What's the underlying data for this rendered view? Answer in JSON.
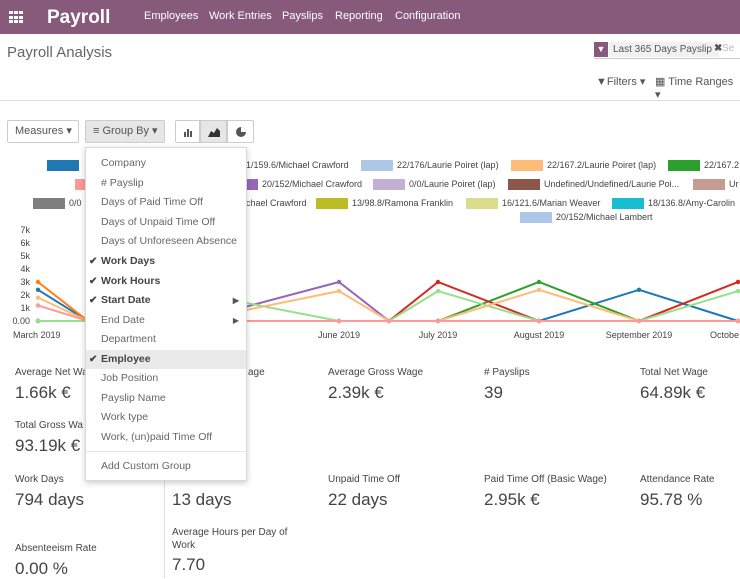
{
  "app": {
    "brand": "Payroll",
    "menu": [
      "Employees",
      "Work Entries",
      "Payslips",
      "Reporting",
      "Configuration"
    ]
  },
  "page": {
    "title": "Payroll Analysis"
  },
  "search": {
    "facet": "Last 365 Days Payslip",
    "placeholder": "Se",
    "filters_label": "Filters",
    "time_ranges_label": "Time Ranges"
  },
  "toolbar": {
    "measures": "Measures",
    "group_by": "Group By"
  },
  "legend": [
    {
      "label": "",
      "color": "#1f77b4"
    },
    {
      "label": "1/159.6/Michael Crawford",
      "color": "#aec7e8"
    },
    {
      "label": "22/176/Laurie Poiret (lap)",
      "color": "#aec7e8"
    },
    {
      "label": "22/167.2/Laurie Poiret (lap)",
      "color": "#ffbb78"
    },
    {
      "label": "22/167.2",
      "color": "#2ca02c"
    },
    {
      "label": "",
      "color": "#ff9896"
    },
    {
      "label": "20/152/Michael Crawford",
      "color": "#9467bd"
    },
    {
      "label": "0/0/Laurie Poiret (lap)",
      "color": "#c5b0d5"
    },
    {
      "label": "Undefined/Undefined/Laurie Poi...",
      "color": "#8c564b"
    },
    {
      "label": "Ur",
      "color": "#c49c94"
    },
    {
      "label": "0/0",
      "color": "#7f7f7f"
    },
    {
      "label": "chael Crawford",
      "color": "#e377c2"
    },
    {
      "label": "13/98.8/Ramona Franklin",
      "color": "#bcbd22"
    },
    {
      "label": "16/121.6/Marian Weaver",
      "color": "#dbdb8d"
    },
    {
      "label": "18/136.8/Amy-Carolin",
      "color": "#17becf"
    },
    {
      "label": "20/152/Michael Lambert",
      "color": "#aec7e8"
    }
  ],
  "chart_data": {
    "type": "line",
    "y_ticks": [
      "0.00",
      "1k",
      "2k",
      "3k",
      "4k",
      "5k",
      "6k",
      "7k"
    ],
    "ylim": [
      0,
      7000
    ],
    "x_labels": [
      "March 2019",
      "June 2019",
      "July 2019",
      "August 2019",
      "September 2019",
      "Octobe"
    ],
    "series": [
      {
        "color": "#1f77b4",
        "values": [
          2400,
          0,
          0,
          0,
          0,
          0,
          0,
          0,
          2400,
          0
        ]
      },
      {
        "color": "#ff7f0e",
        "values": [
          3000,
          0,
          0,
          0,
          0,
          0,
          0,
          0,
          0,
          3000
        ]
      },
      {
        "color": "#2ca02c",
        "values": [
          0,
          0,
          0,
          0,
          0,
          0,
          0,
          3000,
          0,
          0
        ]
      },
      {
        "color": "#d62728",
        "values": [
          0,
          0,
          0,
          0,
          0,
          0,
          3000,
          0,
          0,
          3000
        ]
      },
      {
        "color": "#9467bd",
        "values": [
          0,
          0,
          0,
          0,
          3000,
          0,
          0,
          0,
          0,
          0
        ]
      },
      {
        "color": "#98df8a",
        "values": [
          0,
          0,
          0,
          2200,
          0,
          0,
          2300,
          0,
          0,
          2300
        ]
      },
      {
        "color": "#ffbb78",
        "values": [
          1800,
          0,
          0,
          0,
          2300,
          0,
          0,
          2400,
          0,
          0
        ]
      },
      {
        "color": "#ff9896",
        "values": [
          1200,
          0,
          0,
          0,
          0,
          0,
          0,
          0,
          0,
          0
        ]
      }
    ]
  },
  "group_by_menu": {
    "items": [
      {
        "label": "Company",
        "checked": false,
        "caret": false
      },
      {
        "label": "# Payslip",
        "checked": false,
        "caret": false
      },
      {
        "label": "Days of Paid Time Off",
        "checked": false,
        "caret": false
      },
      {
        "label": "Days of Unpaid Time Off",
        "checked": false,
        "caret": false
      },
      {
        "label": "Days of Unforeseen Absence",
        "checked": false,
        "caret": false
      },
      {
        "label": "Work Days",
        "checked": true,
        "caret": false
      },
      {
        "label": "Work Hours",
        "checked": true,
        "caret": false
      },
      {
        "label": "Start Date",
        "checked": true,
        "caret": true
      },
      {
        "label": "End Date",
        "checked": false,
        "caret": true
      },
      {
        "label": "Department",
        "checked": false,
        "caret": false
      },
      {
        "label": "Employee",
        "checked": true,
        "caret": false
      },
      {
        "label": "Job Position",
        "checked": false,
        "caret": false
      },
      {
        "label": "Payslip Name",
        "checked": false,
        "caret": false
      },
      {
        "label": "Work type",
        "checked": false,
        "caret": false
      },
      {
        "label": "Work, (un)paid Time Off",
        "checked": false,
        "caret": false
      }
    ],
    "add_custom": "Add Custom Group"
  },
  "kpis": {
    "avg_net": {
      "label": "Average Net Wa",
      "value": "1.66k €"
    },
    "avg_basic": {
      "label": "age",
      "value": ""
    },
    "avg_gross": {
      "label": "Average Gross Wage",
      "value": "2.39k €"
    },
    "payslips": {
      "label": "# Payslips",
      "value": "39"
    },
    "total_net": {
      "label": "Total Net Wage",
      "value": "64.89k €"
    },
    "total_gross": {
      "label": "Total Gross Wa",
      "value": "93.19k €"
    },
    "work_days": {
      "label": "Work Days",
      "value": "794 days"
    },
    "work_hours": {
      "label": "",
      "value": "13 days"
    },
    "unpaid": {
      "label": "Unpaid Time Off",
      "value": "22 days"
    },
    "paid": {
      "label": "Paid Time Off (Basic Wage)",
      "value": "2.95k €"
    },
    "attendance": {
      "label": "Attendance Rate",
      "value": "95.78 %"
    },
    "absenteeism": {
      "label": "Absenteeism Rate",
      "value": "0.00 %"
    },
    "avg_hours": {
      "label": "Average Hours per Day of Work",
      "value": "7.70"
    }
  }
}
